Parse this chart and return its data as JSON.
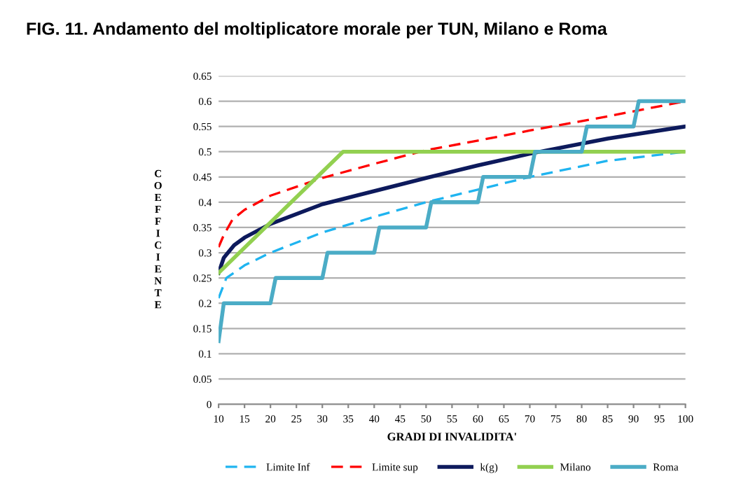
{
  "chart_data": {
    "type": "line",
    "title": "FIG. 11. Andamento del moltiplicatore morale per TUN, Milano e Roma",
    "xlabel": "GRADI DI INVALIDITA'",
    "ylabel": "COEFFICIENTE",
    "xlim": [
      10,
      100
    ],
    "xticks": [
      10,
      15,
      20,
      25,
      30,
      35,
      40,
      45,
      50,
      55,
      60,
      65,
      70,
      75,
      80,
      85,
      90,
      95,
      100
    ],
    "ylim": [
      0,
      0.65
    ],
    "yticks": [
      0,
      0.05,
      0.1,
      0.15,
      0.2,
      0.25,
      0.3,
      0.35,
      0.4,
      0.45,
      0.5,
      0.55,
      0.6,
      0.65
    ],
    "grid": "y",
    "legend": "bottom",
    "marker": "none",
    "series": [
      {
        "name": "Limite Inf",
        "color": "#1fb4f0",
        "line_style": "dashed",
        "x": [
          10,
          11.5,
          15,
          20,
          30,
          40,
          50,
          60,
          70,
          85,
          100
        ],
        "values": [
          0.21,
          0.25,
          0.275,
          0.3,
          0.34,
          0.371,
          0.4,
          0.425,
          0.45,
          0.482,
          0.5
        ]
      },
      {
        "name": "Limite sup",
        "color": "#ff0000",
        "line_style": "dashed",
        "x": [
          10,
          11,
          12.7,
          15,
          20,
          30,
          40,
          50,
          60,
          70,
          85,
          100
        ],
        "values": [
          0.311,
          0.335,
          0.366,
          0.385,
          0.413,
          0.448,
          0.476,
          0.503,
          0.522,
          0.542,
          0.57,
          0.6
        ]
      },
      {
        "name": "k(g)",
        "color": "#0d1a5c",
        "line_style": "solid",
        "x": [
          10,
          11,
          13,
          15,
          20,
          30,
          40,
          50,
          60,
          70,
          85,
          100
        ],
        "values": [
          0.26,
          0.29,
          0.315,
          0.33,
          0.357,
          0.396,
          0.422,
          0.448,
          0.473,
          0.496,
          0.526,
          0.55
        ]
      },
      {
        "name": "Milano",
        "color": "#92d050",
        "line_style": "solid",
        "x": [
          10,
          34,
          100
        ],
        "values": [
          0.26,
          0.5,
          0.5
        ]
      },
      {
        "name": "Roma",
        "color": "#4bacc6",
        "line_style": "solid",
        "x": [
          10,
          11,
          20,
          21,
          30,
          31,
          40,
          41,
          50,
          51,
          60,
          61,
          70,
          71,
          80,
          81,
          90,
          91,
          100
        ],
        "values": [
          0.125,
          0.2,
          0.2,
          0.25,
          0.25,
          0.3,
          0.3,
          0.35,
          0.35,
          0.4,
          0.4,
          0.45,
          0.45,
          0.5,
          0.5,
          0.55,
          0.55,
          0.6,
          0.6
        ]
      }
    ]
  }
}
